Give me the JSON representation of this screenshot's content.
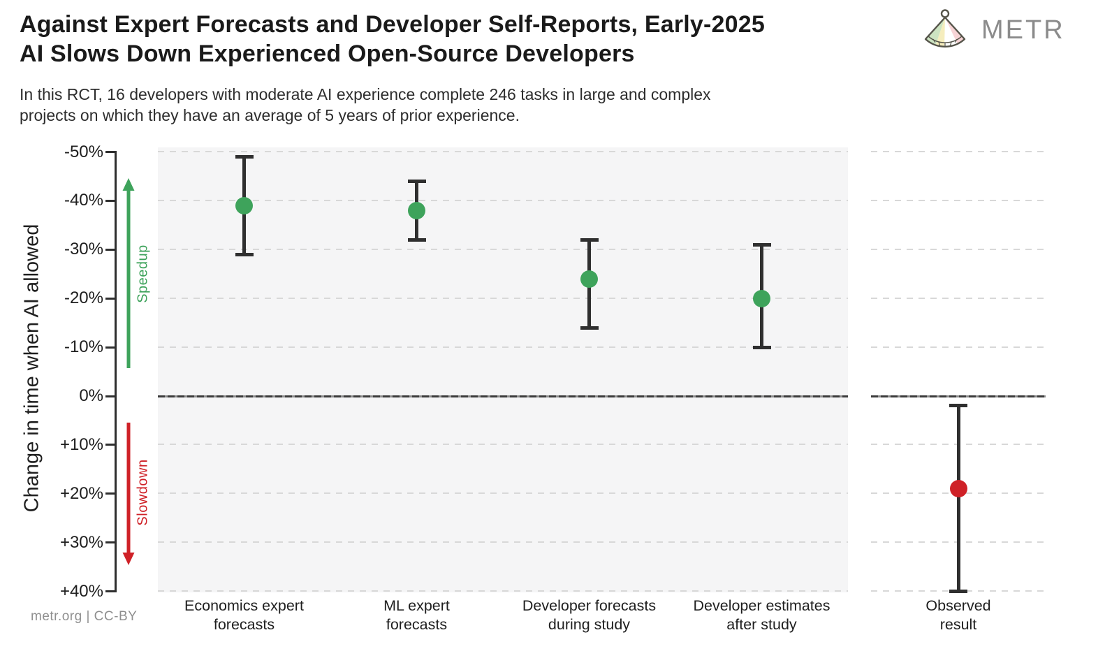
{
  "header": {
    "title_line1": "Against Expert Forecasts and Developer Self-Reports, Early-2025",
    "title_line2": "AI Slows Down Experienced Open-Source Developers",
    "subtitle_line1": "In this RCT, 16 developers with moderate AI experience complete 246 tasks in large and complex",
    "subtitle_line2": "projects on which they have an average of 5 years of prior experience.",
    "logo_text": "METR"
  },
  "footer": {
    "credit": "metr.org  |  CC-BY"
  },
  "colors": {
    "speedup": "#3ea35b",
    "slowdown": "#cf2127",
    "errorbar": "#2f2f2f",
    "grid": "#d8d8d8",
    "zero_line": "#3b3b3b",
    "panel_bg": "#f5f5f6",
    "logo_green": "#cde4c2",
    "logo_yellow": "#f5edbd",
    "logo_pink": "#f7d4d6"
  },
  "chart_data": {
    "type": "scatter",
    "title": "Against Expert Forecasts and Developer Self-Reports, Early-2025 AI Slows Down Experienced Open-Source Developers",
    "subtitle": "In this RCT, 16 developers with moderate AI experience complete 246 tasks in large and complex projects on which they have an average of 5 years of prior experience.",
    "ylabel": "Change in time when AI allowed",
    "y_axis_inverted": true,
    "ylim": [
      -50,
      40
    ],
    "grid": "dashed horizontal gridlines every 10%, solid line at 0%",
    "legend_position": "none",
    "annotations": {
      "speedup": "Speedup",
      "slowdown": "Slowdown"
    },
    "y_ticks": [
      {
        "value": -50,
        "label": "-50%"
      },
      {
        "value": -40,
        "label": "-40%"
      },
      {
        "value": -30,
        "label": "-30%"
      },
      {
        "value": -20,
        "label": "-20%"
      },
      {
        "value": -10,
        "label": "-10%"
      },
      {
        "value": 0,
        "label": "0%"
      },
      {
        "value": 10,
        "label": "+10%"
      },
      {
        "value": 20,
        "label": "+20%"
      },
      {
        "value": 30,
        "label": "+30%"
      },
      {
        "value": 40,
        "label": "+40%"
      }
    ],
    "points": [
      {
        "label": "Economics expert forecasts",
        "category_lines": [
          "Economics expert",
          "forecasts"
        ],
        "value": -39,
        "ci": [
          -49,
          -29
        ],
        "color_key": "speedup",
        "panel": "main"
      },
      {
        "label": "ML expert forecasts",
        "category_lines": [
          "ML expert",
          "forecasts"
        ],
        "value": -38,
        "ci": [
          -44,
          -32
        ],
        "color_key": "speedup",
        "panel": "main"
      },
      {
        "label": "Developer forecasts during study",
        "category_lines": [
          "Developer forecasts",
          "during study"
        ],
        "value": -24,
        "ci": [
          -32,
          -14
        ],
        "color_key": "speedup",
        "panel": "main"
      },
      {
        "label": "Developer estimates after study",
        "category_lines": [
          "Developer estimates",
          "after study"
        ],
        "value": -20,
        "ci": [
          -31,
          -10
        ],
        "color_key": "speedup",
        "panel": "main"
      },
      {
        "label": "Observed result",
        "category_lines": [
          "Observed",
          "result"
        ],
        "value": 19,
        "ci": [
          2,
          40
        ],
        "color_key": "slowdown",
        "panel": "observed"
      }
    ]
  }
}
